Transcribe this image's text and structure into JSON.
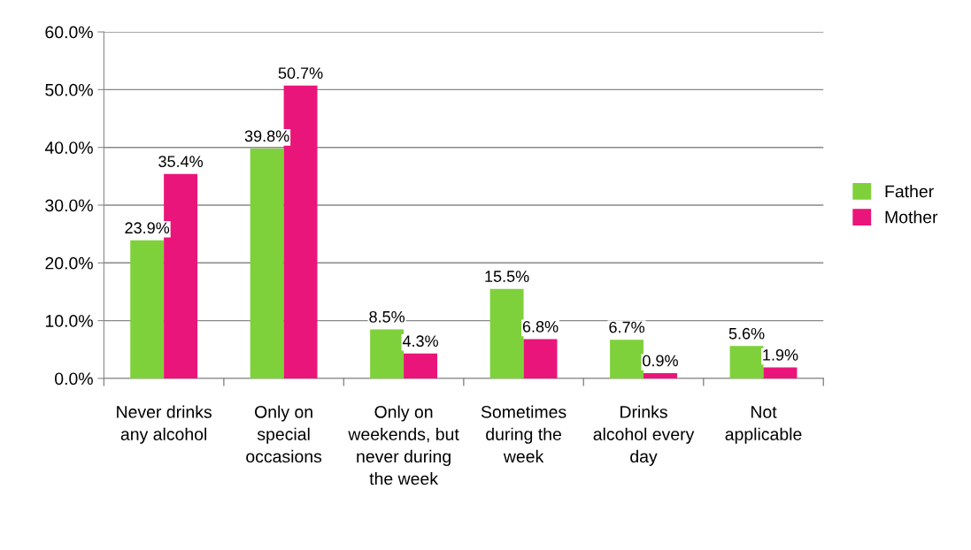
{
  "chart_data": {
    "type": "bar",
    "categories": [
      "Never drinks any alcohol",
      "Only on special occasions",
      "Only on weekends, but never during the week",
      "Sometimes during the week",
      "Drinks alcohol every day",
      "Not applicable"
    ],
    "series": [
      {
        "name": "Father",
        "color": "#7fd13b",
        "values": [
          23.9,
          39.8,
          8.5,
          15.5,
          6.7,
          5.6
        ],
        "value_labels": [
          "23.9%",
          "39.8%",
          "8.5%",
          "15.5%",
          "6.7%",
          "5.6%"
        ]
      },
      {
        "name": "Mother",
        "color": "#ea157a",
        "values": [
          35.4,
          50.7,
          4.3,
          6.8,
          0.9,
          1.9
        ],
        "value_labels": [
          "35.4%",
          "50.7%",
          "4.3%",
          "6.8%",
          "0.9%",
          "1.9%"
        ]
      }
    ],
    "ylim": [
      0,
      60
    ],
    "yticks": [
      {
        "value": 0,
        "label": "0.0%"
      },
      {
        "value": 10,
        "label": "10.0%"
      },
      {
        "value": 20,
        "label": "20.0%"
      },
      {
        "value": 30,
        "label": "30.0%"
      },
      {
        "value": 40,
        "label": "40.0%"
      },
      {
        "value": 50,
        "label": "50.0%"
      },
      {
        "value": 60,
        "label": "60.0%"
      }
    ],
    "grid": "y",
    "legend": "right"
  }
}
